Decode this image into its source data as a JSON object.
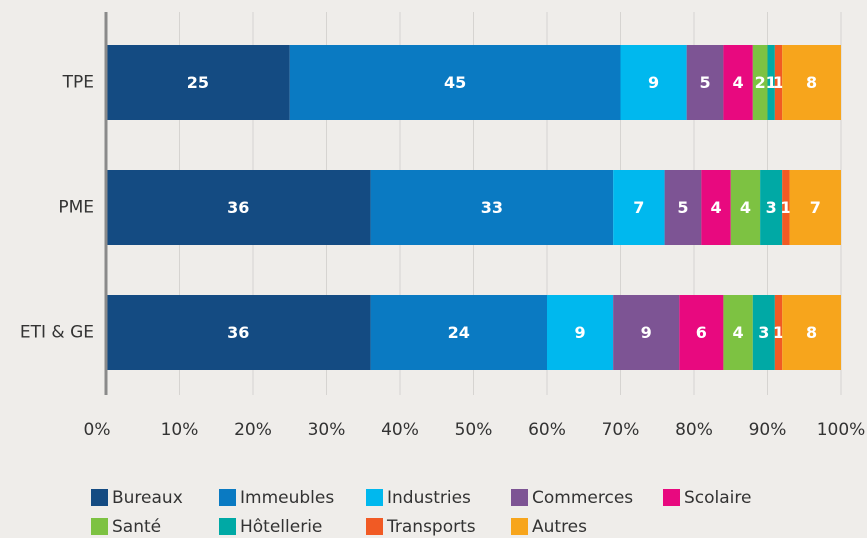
{
  "chart_data": {
    "type": "bar",
    "orientation": "horizontal",
    "stacked": true,
    "categories": [
      "TPE",
      "PME",
      "ETI & GE"
    ],
    "series": [
      {
        "name": "Bureaux",
        "color": "#144b82",
        "values": [
          25,
          36,
          36
        ]
      },
      {
        "name": "Immeubles",
        "color": "#0a7ac2",
        "values": [
          45,
          33,
          24
        ]
      },
      {
        "name": "Industries",
        "color": "#00b8ee",
        "values": [
          9,
          7,
          9
        ]
      },
      {
        "name": "Commerces",
        "color": "#7d5494",
        "values": [
          5,
          5,
          9
        ]
      },
      {
        "name": "Scolaire",
        "color": "#e8097f",
        "values": [
          4,
          4,
          6
        ]
      },
      {
        "name": "Santé",
        "color": "#7dc242",
        "values": [
          2,
          4,
          4
        ]
      },
      {
        "name": "Hôtellerie",
        "color": "#00a9a5",
        "values": [
          1,
          3,
          3
        ]
      },
      {
        "name": "Transports",
        "color": "#f15a24",
        "values": [
          1,
          1,
          1
        ]
      },
      {
        "name": "Autres",
        "color": "#f7a51c",
        "values": [
          8,
          7,
          8
        ]
      }
    ],
    "xlim": [
      0,
      100
    ],
    "xticks": [
      {
        "value": 0,
        "label": "0%"
      },
      {
        "value": 10,
        "label": "10%"
      },
      {
        "value": 20,
        "label": "20%"
      },
      {
        "value": 30,
        "label": "30%"
      },
      {
        "value": 40,
        "label": "40%"
      },
      {
        "value": 50,
        "label": "50%"
      },
      {
        "value": 60,
        "label": "60%"
      },
      {
        "value": 70,
        "label": "70%"
      },
      {
        "value": 80,
        "label": "80%"
      },
      {
        "value": 90,
        "label": "90%"
      },
      {
        "value": 100,
        "label": "100%"
      }
    ],
    "grid": true,
    "legend": "bottom"
  }
}
